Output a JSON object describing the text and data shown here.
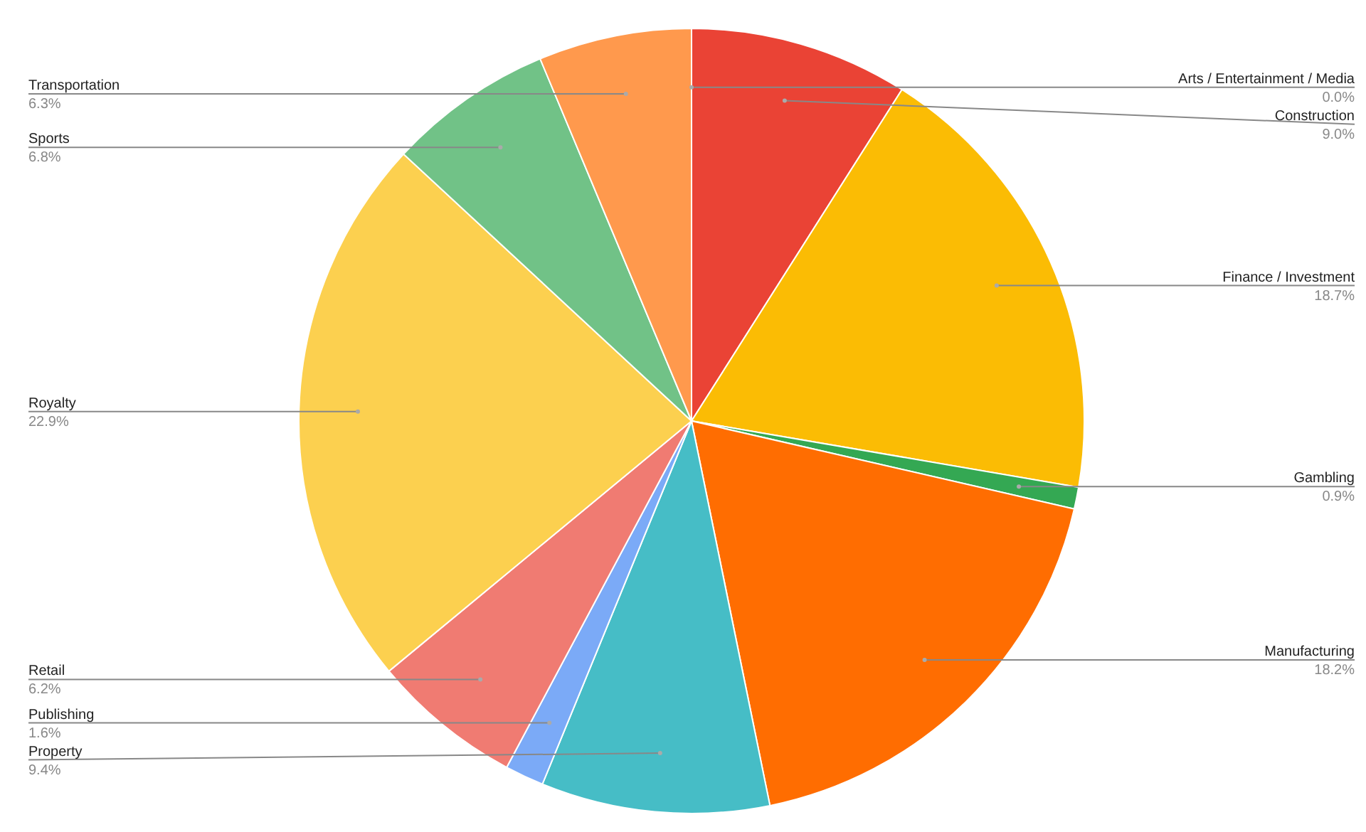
{
  "chart_data": {
    "type": "pie",
    "categories": [
      "Arts / Entertainment / Media",
      "Construction",
      "Finance / Investment",
      "Gambling",
      "Manufacturing",
      "Property",
      "Publishing",
      "Retail",
      "Royalty",
      "Sports",
      "Transportation"
    ],
    "values": [
      0.0,
      9.0,
      18.7,
      0.9,
      18.2,
      9.4,
      1.6,
      6.2,
      22.9,
      6.8,
      6.3
    ],
    "value_labels": [
      "0.0%",
      "9.0%",
      "18.7%",
      "0.9%",
      "18.2%",
      "9.4%",
      "1.6%",
      "6.2%",
      "22.9%",
      "6.8%",
      "6.3%"
    ],
    "colors": [
      "#4285f4",
      "#ea4335",
      "#fbbc04",
      "#34a853",
      "#ff6d01",
      "#46bdc6",
      "#7baaf7",
      "#f07b72",
      "#fcd04f",
      "#71c287",
      "#ff994d"
    ]
  }
}
